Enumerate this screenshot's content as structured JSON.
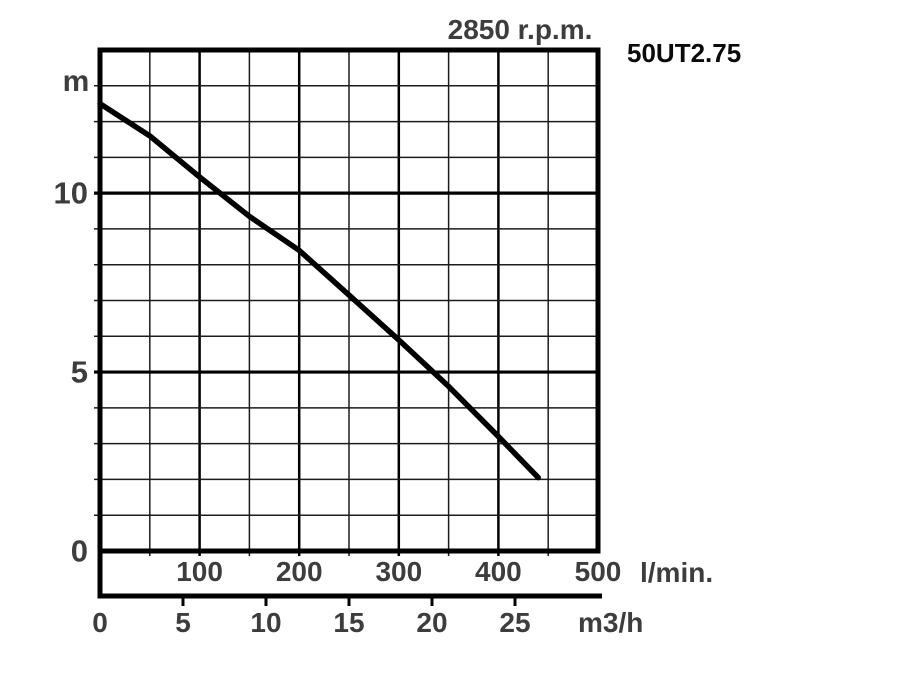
{
  "chart_data": {
    "type": "line",
    "title": "2850 r.p.m.",
    "model": "50UT2.75",
    "background": "#ffffff",
    "grid": "on",
    "y_axis": {
      "unit": "m",
      "label": "head",
      "min": 0,
      "max": 14,
      "minor_step": 1,
      "major_ticks": [
        0,
        5,
        10
      ],
      "tick_labels": [
        "0",
        "5",
        "10"
      ]
    },
    "x_axis_lmin": {
      "unit": "l/min.",
      "label": "flow",
      "min": 0,
      "max": 500,
      "minor_step": 50,
      "major_ticks": [
        100,
        200,
        300,
        400,
        500
      ],
      "tick_labels": [
        "100",
        "200",
        "300",
        "400",
        "500"
      ]
    },
    "x_axis_m3h": {
      "unit": "m3/h",
      "label": "flow",
      "lmin_per_unit": 16.6667,
      "ticks": [
        0,
        5,
        10,
        15,
        20,
        25
      ],
      "tick_labels": [
        "0",
        "5",
        "10",
        "15",
        "20",
        "25"
      ]
    },
    "series": [
      {
        "name": "head-flow-curve",
        "x_lmin": [
          0,
          50,
          100,
          150,
          200,
          250,
          300,
          350,
          400,
          440
        ],
        "y_m": [
          12.5,
          11.6,
          10.45,
          9.35,
          8.4,
          7.15,
          5.9,
          4.6,
          3.2,
          2.05
        ]
      }
    ],
    "colors": {
      "curve": "#000000",
      "minor_grid": "#1c1c1c",
      "major_grid": "#000000",
      "border": "#000000",
      "label_text": "#3d3d3d",
      "model_text": "#0a0a0a"
    }
  }
}
